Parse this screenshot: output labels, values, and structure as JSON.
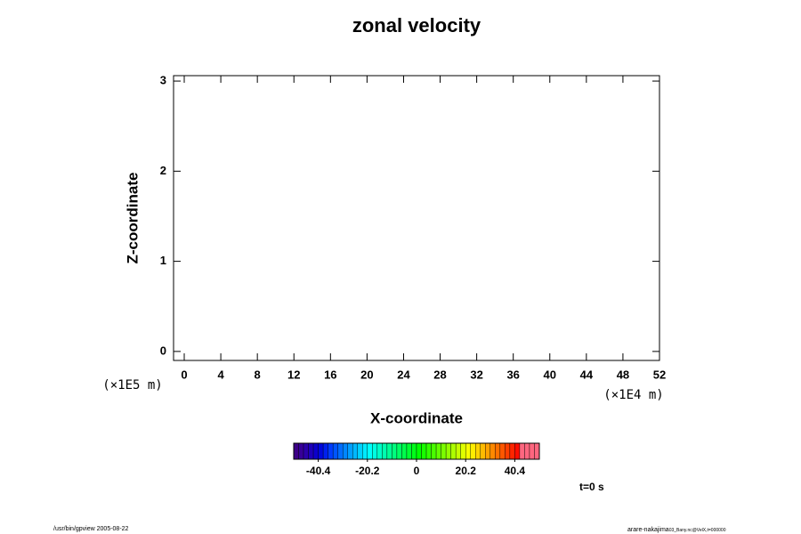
{
  "chart_data": {
    "type": "contour",
    "title": "zonal velocity",
    "xlabel": "X-coordinate",
    "ylabel": "Z-coordinate",
    "x_unit_label": "(×1E4 m)",
    "y_unit_label": "(×1E5 m)",
    "xlim": [
      -1.17,
      52
    ],
    "xticks": [
      0,
      4,
      8,
      12,
      16,
      20,
      24,
      28,
      32,
      36,
      40,
      44,
      48,
      52
    ],
    "ylim": [
      -0.1,
      3.06
    ],
    "yticks": [
      0,
      1,
      2,
      3
    ],
    "colorbar": {
      "range": [
        -50.5,
        50.5
      ],
      "step": 2.02,
      "ticks": [
        -40.4,
        -20.2,
        0,
        20.2,
        40.4
      ]
    },
    "time_label": "t=0 s",
    "footer_left": "/usr/bin/gpview 2005-08-22",
    "footer_right": "arare-nakajima",
    "footer_right_small": "03_Bany.nc@VelX,t=000000"
  }
}
